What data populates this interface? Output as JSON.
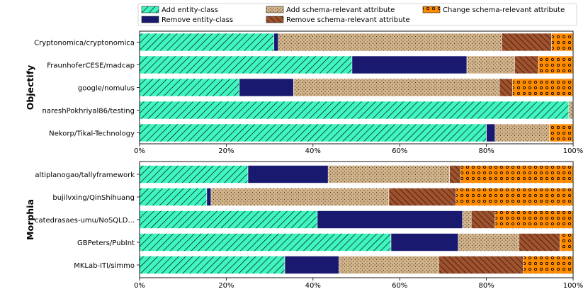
{
  "chart_data": {
    "type": "bar",
    "orientation": "horizontal",
    "stacked": true,
    "normalized": true,
    "xlim": [
      0,
      100
    ],
    "xticks": [
      "0%",
      "20%",
      "40%",
      "60%",
      "80%",
      "100%"
    ],
    "legend": {
      "placement": "top",
      "entries": [
        {
          "key": "add_entity",
          "label": "Add entity-class"
        },
        {
          "key": "remove_entity",
          "label": "Remove entity-class"
        },
        {
          "key": "add_attr",
          "label": "Add schema-relevant attribute"
        },
        {
          "key": "remove_attr",
          "label": "Remove schema-relevant attribute"
        },
        {
          "key": "change_attr",
          "label": "Change schema-relevant attribute"
        }
      ]
    },
    "series_order": [
      "add_entity",
      "remove_entity",
      "add_attr",
      "remove_attr",
      "change_attr"
    ],
    "colors": {
      "add_entity": "#3ff5c0",
      "remove_entity": "#191970",
      "add_attr": "#d2b48c",
      "remove_attr": "#a0522d",
      "change_attr": "#ff8c00"
    },
    "groups": [
      {
        "name": "Objectify",
        "categories": [
          {
            "label": "Cryptonomica/cryptonomica",
            "values": [
              31,
              1,
              51.5,
              11.5,
              5
            ]
          },
          {
            "label": "FraunhoferCESE/madcap",
            "values": [
              49,
              26.5,
              11,
              5.5,
              8
            ]
          },
          {
            "label": "google/nomulus",
            "values": [
              23,
              12.5,
              47.5,
              3,
              14
            ]
          },
          {
            "label": "nareshPokhriyal86/testing",
            "values": [
              99,
              0,
              1,
              0,
              0
            ]
          },
          {
            "label": "Nekorp/Tikal-Technology",
            "values": [
              80,
              2,
              12.5,
              0,
              5.5
            ]
          }
        ]
      },
      {
        "name": "Morphia",
        "categories": [
          {
            "label": "altiplanogao/tallyframework",
            "values": [
              25,
              18.5,
              28,
              2.5,
              26
            ]
          },
          {
            "label": "bujilvxing/QinShihuang",
            "values": [
              15.5,
              1,
              41,
              15.5,
              27
            ]
          },
          {
            "label": "catedrasaes-umu/NoSQLD...",
            "values": [
              41,
              33.5,
              2,
              5.5,
              18
            ]
          },
          {
            "label": "GBPeters/PubInt",
            "values": [
              58,
              15.5,
              14,
              9.5,
              3
            ]
          },
          {
            "label": "MKLab-ITI/simmo",
            "values": [
              33.5,
              12.5,
              23,
              19.5,
              11.5
            ]
          }
        ]
      }
    ]
  }
}
